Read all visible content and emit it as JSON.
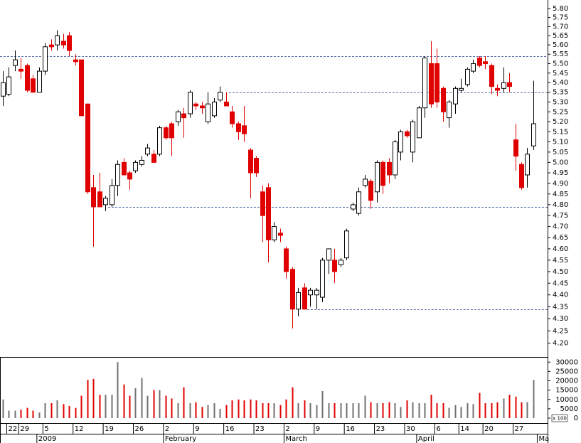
{
  "chart_data": {
    "type": "candlestick",
    "log_scale": true,
    "up_color": "#ffffff",
    "down_color": "#e00000",
    "volume_up_color": "#707070",
    "volume_down_color": "#e00000",
    "level_color": "#5a6fa8",
    "categories": [
      null,
      "22",
      null,
      "29",
      null,
      null,
      null,
      "5",
      null,
      null,
      null,
      null,
      "12",
      null,
      null,
      null,
      null,
      "19",
      null,
      null,
      null,
      null,
      "26",
      null,
      null,
      null,
      null,
      "2",
      null,
      null,
      null,
      null,
      "9",
      null,
      null,
      null,
      null,
      "16",
      null,
      null,
      null,
      null,
      "23",
      null,
      null,
      null,
      null,
      "2",
      null,
      null,
      null,
      null,
      "9",
      null,
      null,
      null,
      null,
      "16",
      null,
      null,
      null,
      null,
      "23",
      null,
      null,
      null,
      null,
      "30",
      null,
      null,
      null,
      null,
      "6",
      null,
      null,
      null,
      "14",
      null,
      null,
      null,
      "20",
      null,
      null,
      null,
      null,
      "27",
      null,
      null,
      null
    ],
    "months": [
      {
        "label": "2009",
        "index": 6
      },
      {
        "label": "February",
        "index": 27
      },
      {
        "label": "March",
        "index": 47
      },
      {
        "label": "April",
        "index": 69
      },
      {
        "label": "Ma",
        "index": 89
      }
    ],
    "open": [
      5.33,
      5.34,
      5.49,
      5.47,
      5.49,
      5.42,
      5.35,
      5.46,
      5.6,
      5.6,
      5.62,
      5.65,
      5.52,
      5.52,
      5.29,
      4.88,
      4.86,
      4.8,
      4.8,
      4.89,
      5.0,
      4.95,
      4.96,
      4.99,
      5.04,
      5.04,
      5.04,
      5.17,
      5.19,
      5.2,
      5.24,
      5.24,
      5.29,
      5.28,
      5.2,
      5.23,
      5.31,
      5.3,
      5.25,
      5.19,
      5.18,
      5.06,
      5.02,
      4.86,
      4.88,
      4.64,
      4.67,
      4.6,
      4.51,
      4.34,
      4.43,
      4.4,
      4.4,
      4.39,
      4.55,
      4.55,
      4.53,
      4.56,
      4.78,
      4.76,
      4.89,
      4.91,
      4.86,
      5.0,
      5.0,
      4.94,
      5.05,
      5.15,
      5.05,
      5.12,
      5.27,
      5.5,
      5.5,
      5.37,
      5.22,
      5.29,
      5.36,
      5.39,
      5.46,
      5.53,
      5.51,
      5.49,
      5.37,
      5.37,
      5.4,
      5.11,
      4.99,
      4.94,
      5.08
    ],
    "high": [
      5.46,
      5.48,
      5.57,
      5.53,
      5.5,
      5.44,
      5.48,
      5.61,
      5.63,
      5.68,
      5.66,
      5.67,
      5.55,
      5.52,
      5.29,
      4.94,
      4.95,
      4.84,
      4.92,
      5.01,
      5.02,
      4.96,
      5.01,
      5.03,
      5.09,
      5.06,
      5.18,
      5.18,
      5.2,
      5.26,
      5.27,
      5.36,
      5.3,
      5.3,
      5.35,
      5.32,
      5.38,
      5.35,
      5.28,
      5.2,
      5.28,
      5.07,
      5.03,
      4.89,
      4.9,
      4.72,
      4.69,
      4.61,
      4.52,
      4.43,
      4.45,
      4.43,
      4.43,
      4.56,
      4.6,
      4.6,
      4.56,
      4.69,
      4.81,
      4.88,
      4.94,
      4.92,
      5.01,
      5.01,
      5.02,
      5.11,
      5.16,
      5.16,
      5.21,
      5.28,
      5.54,
      5.62,
      5.58,
      5.38,
      5.31,
      5.38,
      5.42,
      5.48,
      5.52,
      5.54,
      5.54,
      5.5,
      5.39,
      5.48,
      5.45,
      5.19,
      5.0,
      5.07,
      5.41
    ],
    "low": [
      5.28,
      5.33,
      5.46,
      5.42,
      5.35,
      5.35,
      5.35,
      5.44,
      5.57,
      5.57,
      5.58,
      5.54,
      5.49,
      5.23,
      4.85,
      4.61,
      4.79,
      4.77,
      4.79,
      4.84,
      4.94,
      4.87,
      4.95,
      4.98,
      5.03,
      5.0,
      5.03,
      5.11,
      5.03,
      5.18,
      5.12,
      5.22,
      5.26,
      5.24,
      5.19,
      5.22,
      5.3,
      5.28,
      5.17,
      5.11,
      5.1,
      4.83,
      4.93,
      4.63,
      4.54,
      4.63,
      4.63,
      4.47,
      4.26,
      4.31,
      4.34,
      4.35,
      4.34,
      4.37,
      4.49,
      4.45,
      4.52,
      4.55,
      4.77,
      4.75,
      4.88,
      4.78,
      4.81,
      4.85,
      4.9,
      4.92,
      5.01,
      5.12,
      5.0,
      5.12,
      5.22,
      5.27,
      5.27,
      5.2,
      5.17,
      5.24,
      5.35,
      5.38,
      5.45,
      5.48,
      5.47,
      5.34,
      5.33,
      5.35,
      5.35,
      4.96,
      4.87,
      4.88,
      5.06
    ],
    "close": [
      5.4,
      5.43,
      5.52,
      5.46,
      5.36,
      5.35,
      5.46,
      5.59,
      5.59,
      5.65,
      5.6,
      5.57,
      5.51,
      5.23,
      4.86,
      4.79,
      4.79,
      4.83,
      4.89,
      4.99,
      4.94,
      4.92,
      5.0,
      5.01,
      5.07,
      5.0,
      5.17,
      5.12,
      5.12,
      5.25,
      5.22,
      5.35,
      5.28,
      5.27,
      5.29,
      5.3,
      5.35,
      5.28,
      5.19,
      5.15,
      5.14,
      4.95,
      4.95,
      4.75,
      4.64,
      4.7,
      4.66,
      4.5,
      4.34,
      4.41,
      4.34,
      4.42,
      4.42,
      4.55,
      4.6,
      4.5,
      4.55,
      4.68,
      4.8,
      4.86,
      4.92,
      4.82,
      5.0,
      4.89,
      4.94,
      5.1,
      5.15,
      5.13,
      5.2,
      5.27,
      5.53,
      5.29,
      5.3,
      5.25,
      5.3,
      5.37,
      5.37,
      5.47,
      5.5,
      5.49,
      5.5,
      5.38,
      5.36,
      5.4,
      5.38,
      5.03,
      4.88,
      5.04,
      5.19
    ],
    "ylim": [
      4.15,
      5.84
    ],
    "yticks": [
      {
        "value": 4.2,
        "label": "4.20"
      },
      4.25,
      {
        "value": 4.3,
        "label": "4.30"
      },
      4.35,
      {
        "value": 4.4,
        "label": "4.40"
      },
      4.45,
      {
        "value": 4.5,
        "label": "4.50"
      },
      4.55,
      {
        "value": 4.6,
        "label": "4.60"
      },
      4.65,
      {
        "value": 4.7,
        "label": "4.70"
      },
      4.75,
      {
        "value": 4.8,
        "label": "4.80"
      },
      4.85,
      {
        "value": 4.9,
        "label": "4.90"
      },
      4.95,
      {
        "value": 5,
        "label": "5.00"
      },
      5.05,
      {
        "value": 5.1,
        "label": "5.10"
      },
      5.15,
      {
        "value": 5.2,
        "label": "5.20"
      },
      5.25,
      {
        "value": 5.3,
        "label": "5.30"
      },
      5.35,
      {
        "value": 5.4,
        "label": "5.40"
      },
      5.45,
      {
        "value": 5.5,
        "label": "5.50"
      },
      5.55,
      {
        "value": 5.6,
        "label": "5.60"
      },
      5.65,
      {
        "value": 5.7,
        "label": "5.70"
      },
      5.75,
      {
        "value": 5.8,
        "label": "5.80"
      }
    ],
    "levels": [
      5.54,
      5.35,
      4.79,
      4.34
    ],
    "volume": {
      "values": [
        10000,
        4000,
        4000,
        4500,
        5500,
        4000,
        3000,
        8000,
        8000,
        9500,
        7500,
        6500,
        5500,
        12000,
        20500,
        21000,
        12500,
        12500,
        12500,
        30000,
        18000,
        12000,
        16000,
        21500,
        12000,
        15000,
        15000,
        12000,
        10500,
        8000,
        16500,
        8000,
        8500,
        6000,
        7000,
        8000,
        5000,
        7000,
        9500,
        10000,
        9500,
        10000,
        9500,
        8000,
        8000,
        8000,
        7000,
        10000,
        16500,
        8000,
        9500,
        8000,
        7000,
        14500,
        8000,
        8000,
        8000,
        8000,
        8000,
        8000,
        12000,
        8500,
        8000,
        8000,
        8500,
        8000,
        6000,
        9500,
        8500,
        8000,
        8000,
        12500,
        8000,
        8000,
        5500,
        7000,
        6000,
        8000,
        7500,
        13500,
        8000,
        8000,
        8500,
        10500,
        12500,
        11500,
        8500,
        8500,
        20500
      ],
      "ylim": [
        0,
        32000
      ],
      "yticks": [
        0,
        5000,
        10000,
        15000,
        20000,
        25000,
        30000
      ],
      "unit_label": "x 100"
    }
  }
}
